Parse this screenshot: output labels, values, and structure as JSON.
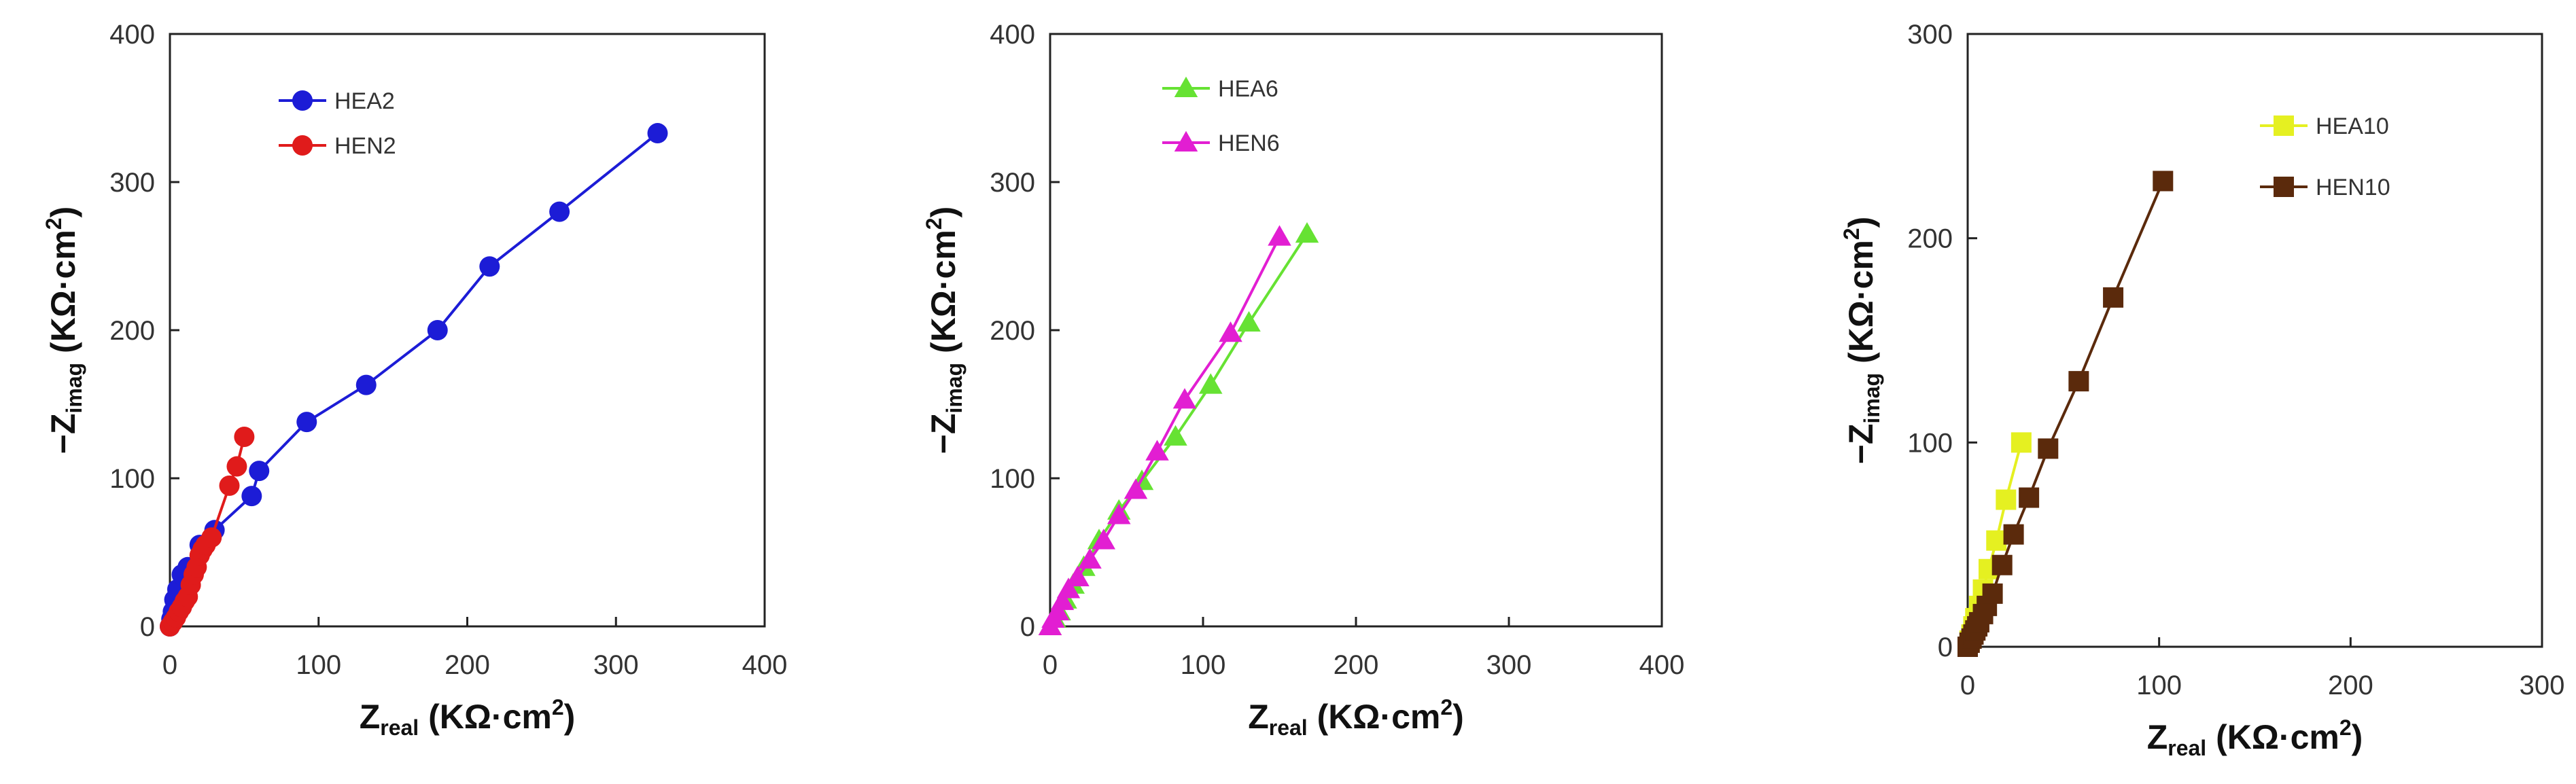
{
  "chart_data": [
    {
      "type": "scatter",
      "xlim": [
        0,
        400
      ],
      "ylim": [
        0,
        400
      ],
      "xticks": [
        "0",
        "100",
        "200",
        "300",
        "400"
      ],
      "yticks": [
        "0",
        "100",
        "200",
        "300",
        "400"
      ],
      "xlabel": {
        "main": "Z",
        "sub": "real",
        "unit": " (KΩ·cm",
        "sup": "2",
        "close": ")"
      },
      "ylabel": {
        "main": "−Z",
        "sub": "imag",
        "unit": " (KΩ·cm",
        "sup": "2",
        "close": ")"
      },
      "legend": "top-left",
      "series": [
        {
          "name": "HEA2",
          "color": "#1c1cd6",
          "marker": "circle",
          "x": [
            0,
            1,
            2,
            3,
            5,
            8,
            12,
            20,
            30,
            55,
            60,
            92,
            132,
            180,
            215,
            262,
            328
          ],
          "y": [
            0,
            5,
            10,
            18,
            25,
            35,
            40,
            55,
            65,
            88,
            105,
            138,
            163,
            200,
            243,
            280,
            333
          ]
        },
        {
          "name": "HEN2",
          "color": "#e01b1b",
          "marker": "circle",
          "x": [
            0,
            2,
            4,
            6,
            8,
            10,
            12,
            14,
            16,
            18,
            20,
            22,
            24,
            28,
            40,
            45,
            50
          ],
          "y": [
            0,
            3,
            6,
            10,
            13,
            17,
            20,
            28,
            35,
            40,
            48,
            52,
            55,
            60,
            95,
            108,
            128
          ]
        }
      ]
    },
    {
      "type": "scatter",
      "xlim": [
        0,
        400
      ],
      "ylim": [
        0,
        400
      ],
      "xticks": [
        "0",
        "100",
        "200",
        "300",
        "400"
      ],
      "yticks": [
        "0",
        "100",
        "200",
        "300",
        "400"
      ],
      "xlabel": {
        "main": "Z",
        "sub": "real",
        "unit": " (KΩ·cm",
        "sup": "2",
        "close": ")"
      },
      "ylabel": {
        "main": "−Z",
        "sub": "imag",
        "unit": " (KΩ·cm",
        "sup": "2",
        "close": ")"
      },
      "legend": "top-left",
      "series": [
        {
          "name": "HEA6",
          "color": "#66e233",
          "marker": "triangle",
          "x": [
            0,
            3,
            6,
            10,
            15,
            22,
            32,
            45,
            60,
            82,
            105,
            130,
            168
          ],
          "y": [
            0,
            5,
            10,
            18,
            28,
            40,
            58,
            78,
            98,
            128,
            163,
            205,
            265
          ]
        },
        {
          "name": "HEN6",
          "color": "#e21ed2",
          "marker": "triangle",
          "x": [
            0,
            2,
            5,
            8,
            12,
            18,
            26,
            35,
            45,
            56,
            70,
            88,
            118,
            150
          ],
          "y": [
            0,
            5,
            10,
            17,
            25,
            33,
            45,
            58,
            75,
            92,
            118,
            153,
            198,
            263
          ]
        }
      ]
    },
    {
      "type": "scatter",
      "xlim": [
        0,
        300
      ],
      "ylim": [
        0,
        300
      ],
      "xticks": [
        "0",
        "100",
        "200",
        "300"
      ],
      "yticks": [
        "0",
        "100",
        "200",
        "300"
      ],
      "xlabel": {
        "main": "Z",
        "sub": "real",
        "unit": " (KΩ·cm",
        "sup": "2",
        "close": ")"
      },
      "ylabel": {
        "main": "−Z",
        "sub": "imag",
        "unit": " (KΩ·cm",
        "sup": "2",
        "close": ")"
      },
      "legend": "top-right",
      "series": [
        {
          "name": "HEA10",
          "color": "#e5f021",
          "marker": "square",
          "x": [
            0,
            1,
            2,
            3,
            4,
            6,
            8,
            11,
            15,
            20,
            28
          ],
          "y": [
            0,
            3,
            6,
            10,
            14,
            20,
            28,
            38,
            52,
            72,
            100
          ]
        },
        {
          "name": "HEN10",
          "color": "#5b2a0c",
          "marker": "square",
          "x": [
            0,
            1,
            2,
            3,
            4,
            5,
            6,
            8,
            10,
            13,
            18,
            24,
            32,
            42,
            58,
            76,
            102
          ],
          "y": [
            0,
            2,
            4,
            6,
            8,
            10,
            12,
            16,
            20,
            26,
            40,
            55,
            73,
            97,
            130,
            171,
            228
          ]
        }
      ]
    }
  ]
}
